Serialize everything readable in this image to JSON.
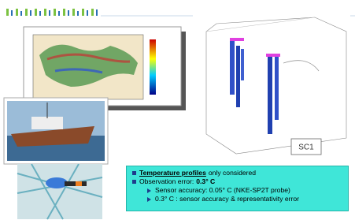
{
  "images": {
    "plot_label": "SC1"
  },
  "bullets": [
    {
      "bold_underlined": "Temperature profiles",
      "text": "only considered"
    },
    {
      "text": "Observation error:",
      "bold": "0.3° C",
      "sub": [
        "Sensor accuracy: 0.05° C (NKE-SP2T probe)",
        "0.3° C : sensor accuracy & representativity error"
      ]
    }
  ]
}
